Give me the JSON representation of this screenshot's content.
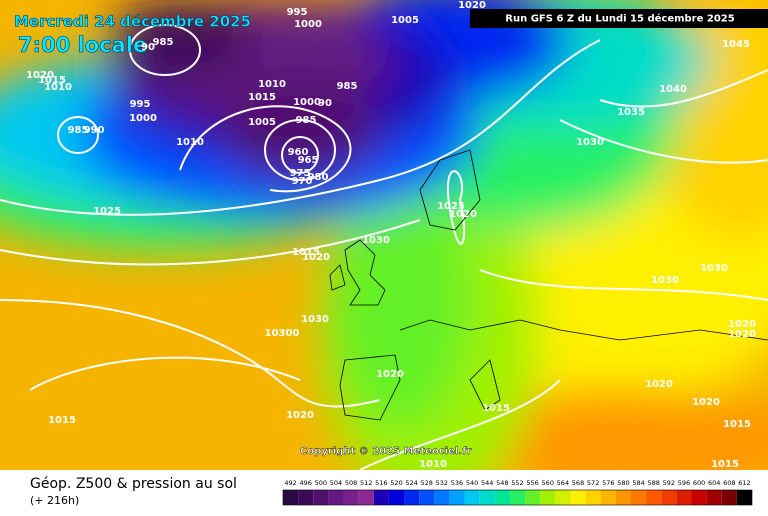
{
  "header": {
    "date": "Mercredi 24 décembre 2025",
    "time": "7:00 locale",
    "run": "Run GFS 6 Z du Lundi 15 décembre 2025"
  },
  "copyright": "Copyright © 2025 Meteociel.fr",
  "footer": {
    "title": "Géop. Z500 & pression au sol",
    "lead": "(+ 216h)"
  },
  "isobar_labels": [
    "995",
    "1000",
    "985",
    "90",
    "1005",
    "1020",
    "1045",
    "1020",
    "1015",
    "1010",
    "1010",
    "1015",
    "985",
    "995",
    "1000",
    "1000",
    "90",
    "1005",
    "985",
    "1040",
    "1035",
    "985",
    "990",
    "1010",
    "1030",
    "960",
    "965",
    "975",
    "970",
    "980",
    "1025",
    "1025",
    "1020",
    "1030",
    "1015",
    "1020",
    "1030",
    "1030",
    "1030",
    "10300",
    "1020",
    "1020",
    "1020",
    "1020",
    "1020",
    "1015",
    "1015",
    "1020",
    "1015",
    "1010",
    "1015"
  ],
  "scale": {
    "labels": [
      492,
      496,
      500,
      504,
      508,
      512,
      516,
      520,
      524,
      528,
      532,
      536,
      540,
      544,
      548,
      552,
      556,
      560,
      564,
      568,
      572,
      576,
      580,
      584,
      588,
      592,
      596,
      600,
      604,
      608,
      612
    ],
    "colors": [
      "#2a0a40",
      "#3c0a5a",
      "#50106e",
      "#641a82",
      "#78208c",
      "#8c2896",
      "#1e00b4",
      "#0000dc",
      "#0028f0",
      "#0050ff",
      "#0078ff",
      "#00a0ff",
      "#00c8f0",
      "#00dcc8",
      "#00e696",
      "#28f064",
      "#64f028",
      "#a0f000",
      "#d2f000",
      "#fff000",
      "#ffd200",
      "#ffb400",
      "#ff9600",
      "#ff7800",
      "#ff5a00",
      "#f03c00",
      "#dc1e00",
      "#c80000",
      "#a00000",
      "#780000",
      "#000000"
    ]
  }
}
